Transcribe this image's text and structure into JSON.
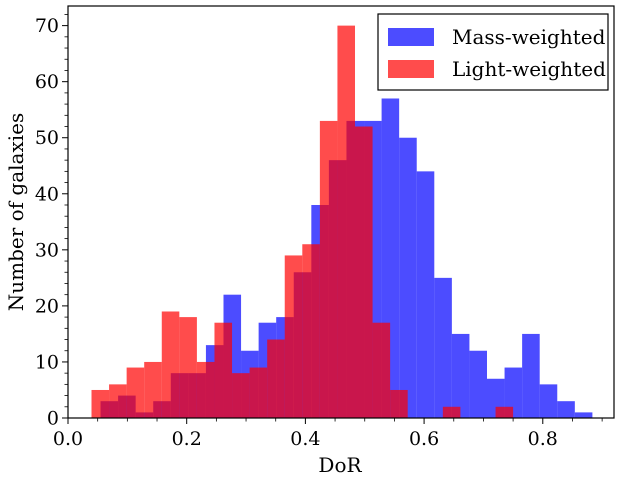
{
  "chart_data": {
    "type": "bar",
    "xlabel": "DoR",
    "ylabel": "Number of galaxies",
    "xlim": [
      0.0,
      0.92
    ],
    "ylim": [
      0,
      73.5
    ],
    "bin_width": 0.0296,
    "xticks": [
      0.0,
      0.2,
      0.4,
      0.6,
      0.8
    ],
    "xtick_labels": [
      "0.0",
      "0.2",
      "0.4",
      "0.6",
      "0.8"
    ],
    "yticks": [
      0,
      10,
      20,
      30,
      40,
      50,
      60,
      70
    ],
    "ytick_labels": [
      "0",
      "10",
      "20",
      "30",
      "40",
      "50",
      "60",
      "70"
    ],
    "legend_position": "top-right",
    "series": [
      {
        "name": "Mass-weighted",
        "color": "#0000ff",
        "opacity": 0.7,
        "bin_starts": [
          0.0548,
          0.0844,
          0.114,
          0.1436,
          0.1732,
          0.2028,
          0.2324,
          0.262,
          0.2916,
          0.3212,
          0.3508,
          0.3804,
          0.41,
          0.4396,
          0.4692,
          0.4988,
          0.5284,
          0.558,
          0.5876,
          0.6172,
          0.6468,
          0.6764,
          0.706,
          0.7356,
          0.7652,
          0.7948,
          0.8244,
          0.854
        ],
        "values": [
          3,
          4,
          1,
          3,
          8,
          8,
          13,
          22,
          12,
          17,
          18,
          26,
          38,
          46,
          53,
          53,
          57,
          50,
          44,
          25,
          15,
          12,
          7,
          9,
          15,
          6,
          3,
          1
        ]
      },
      {
        "name": "Light-weighted",
        "color": "#ff0000",
        "opacity": 0.7,
        "bin_starts": [
          0.0396,
          0.0692,
          0.0988,
          0.1284,
          0.158,
          0.1876,
          0.2172,
          0.2468,
          0.2764,
          0.306,
          0.3356,
          0.3652,
          0.3948,
          0.4244,
          0.454,
          0.4836,
          0.5132,
          0.5428,
          0.5724,
          0.602,
          0.6316,
          0.6612,
          0.6908,
          0.7204,
          0.75
        ],
        "values": [
          5,
          6,
          9,
          10,
          19,
          18,
          10,
          17,
          8,
          9,
          14,
          29,
          31,
          53,
          70,
          52,
          17,
          5,
          0,
          0,
          2,
          0,
          0,
          2,
          0
        ]
      }
    ]
  }
}
